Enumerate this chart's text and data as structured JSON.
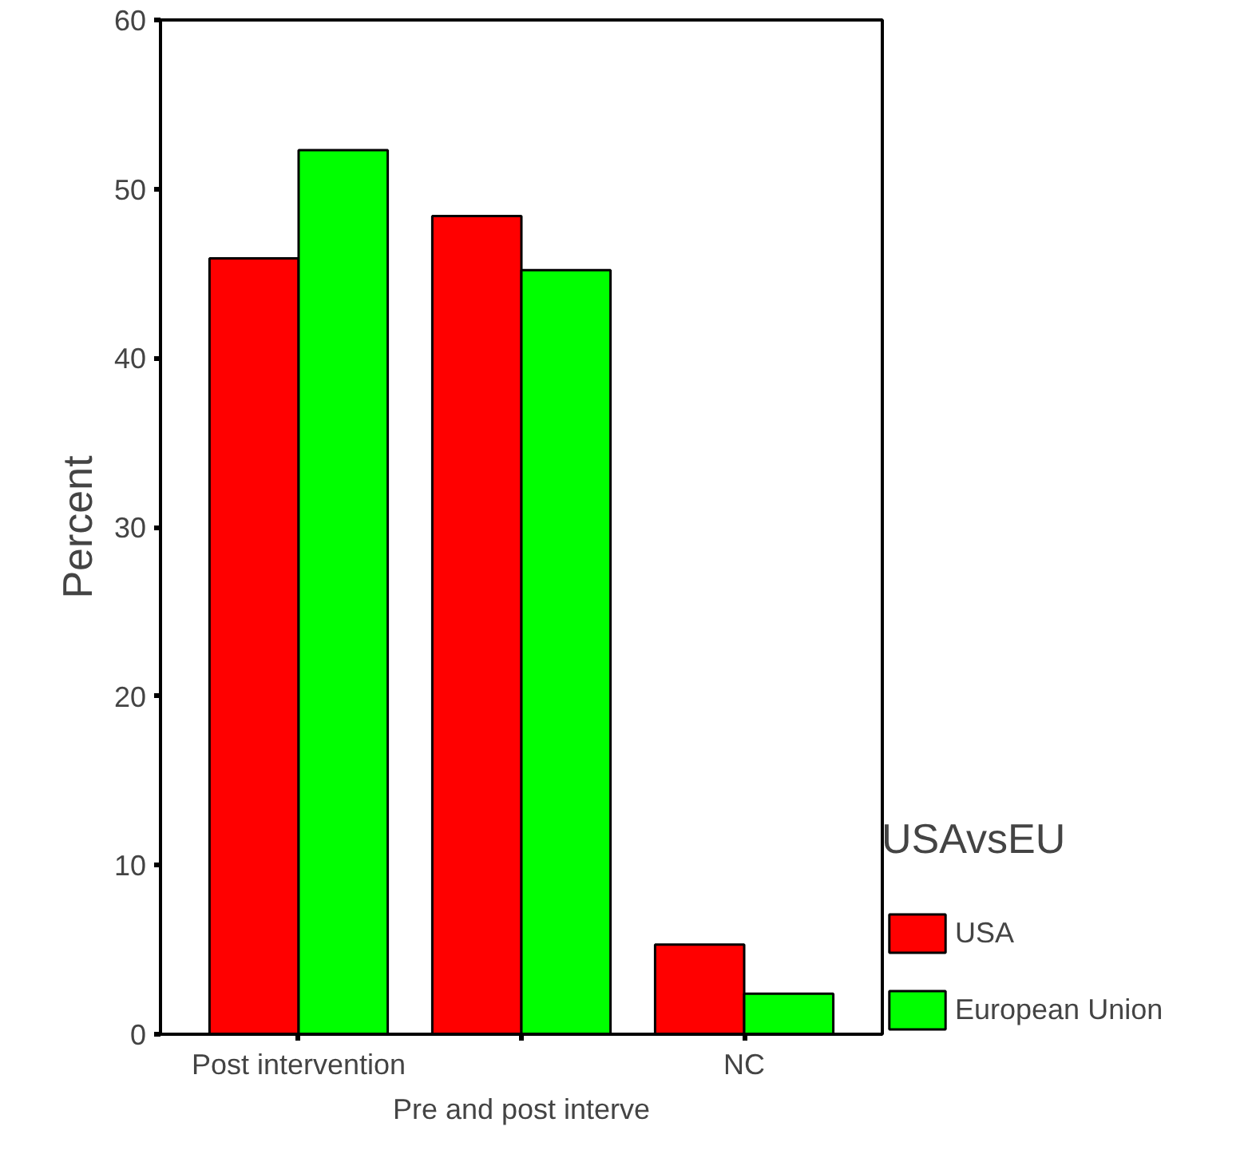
{
  "chart_data": {
    "type": "bar",
    "xlabel": "Pre and post interve",
    "ylabel": "Percent",
    "legend_title": "USAvsEU",
    "categories": [
      "Post intervention",
      null,
      "NC"
    ],
    "series": [
      {
        "name": "USA",
        "color": "#ff0000",
        "values": [
          45.9,
          48.4,
          5.3
        ]
      },
      {
        "name": "European Union",
        "color": "#00ff00",
        "values": [
          52.3,
          45.2,
          2.4
        ]
      }
    ],
    "ylim": [
      0,
      60
    ],
    "yticks": [
      0,
      10,
      20,
      30,
      40,
      50,
      60
    ],
    "grid": false,
    "legend": "right"
  }
}
